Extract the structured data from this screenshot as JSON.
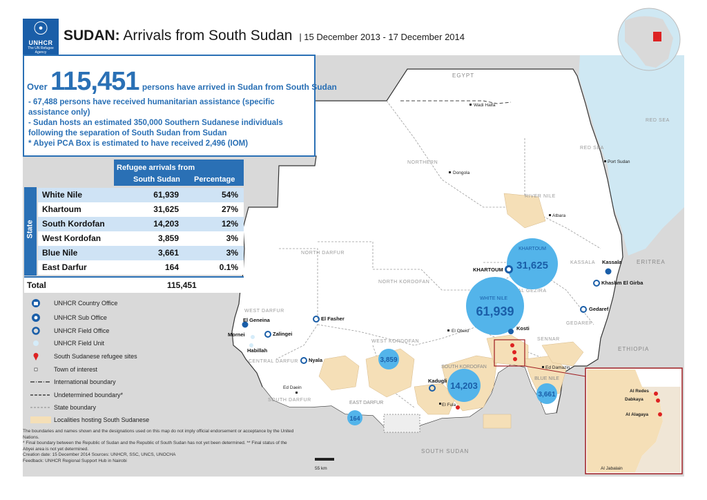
{
  "header": {
    "org_name": "UNHCR",
    "org_tagline": "The UN Refugee Agency",
    "title_bold": "SUDAN:",
    "title_rest": "Arrivals from South Sudan",
    "date_range": "| 15 December 2013 - 17 December 2014"
  },
  "summary": {
    "prefix": "Over",
    "total": "115,451",
    "headline_rest": "persons have arrived in Sudan from South Sudan",
    "bullets": [
      "- 67,488 persons have received humanitarian assistance (specific assistance only)",
      "- Sudan hosts an estimated 350,000 Southern Sudanese individuals following the separation of South Sudan from Sudan",
      "* Abyei PCA Box is estimated to have received 2,496 (IOM)"
    ]
  },
  "table": {
    "header_title": "Refugee arrivals from",
    "col_arrivals": "South Sudan",
    "col_percentage": "Percentage",
    "state_label": "State",
    "rows": [
      {
        "state": "White Nile",
        "arrivals": "61,939",
        "percentage": "54%"
      },
      {
        "state": "Khartoum",
        "arrivals": "31,625",
        "percentage": "27%"
      },
      {
        "state": "South Kordofan",
        "arrivals": "14,203",
        "percentage": "12%"
      },
      {
        "state": "West Kordofan",
        "arrivals": "3,859",
        "percentage": "3%"
      },
      {
        "state": "Blue Nile",
        "arrivals": "3,661",
        "percentage": "3%"
      },
      {
        "state": "East Darfur",
        "arrivals": "164",
        "percentage": "0.1%"
      }
    ],
    "total_label": "Total",
    "total_value": "115,451"
  },
  "legend": [
    {
      "icon": "country-office-icon",
      "label": "UNHCR Country Office"
    },
    {
      "icon": "sub-office-icon",
      "label": "UNHCR Sub Office"
    },
    {
      "icon": "field-office-icon",
      "label": "UNHCR Field Office"
    },
    {
      "icon": "field-unit-icon",
      "label": "UNHCR Field Unit"
    },
    {
      "icon": "refugee-site-icon",
      "label": "South Sudanese refugee sites"
    },
    {
      "icon": "town-icon",
      "label": "Town of interest"
    },
    {
      "icon": "international-boundary-line",
      "label": "International boundary"
    },
    {
      "icon": "undetermined-boundary-line",
      "label": "Undetermined boundary*"
    },
    {
      "icon": "state-boundary-line",
      "label": "State boundary"
    },
    {
      "icon": "localities-swatch",
      "label": "Localities hosting South Sudanese"
    }
  ],
  "footnotes": [
    "The boundaries and names shown and the designations used on this map do not imply official endorsement or acceptance by the United Nations.",
    "* Final boundary between the Republic of Sudan and the Republic of South Sudan has not yet been determined. ** Final status of the Abyei area is not yet determined.",
    "Creation date: 15 December 2014  Sources: UNHCR, SSC, UNCS, UNOCHA",
    "Feedback: UNHCR Regional Support Hub in Nairobi"
  ],
  "map": {
    "countries": [
      "EGYPT",
      "ERITREA",
      "ETHIOPIA",
      "SOUTH SUDAN"
    ],
    "sea": "RED SEA",
    "states": [
      "NORTHERN",
      "RIVER NILE",
      "RED SEA",
      "NORTH DARFUR",
      "NORTH KORDOFAN",
      "KHARTOUM",
      "KASSALA",
      "AL GEZIRA",
      "GEDAREF",
      "WHITE NILE",
      "SENNAR",
      "WEST DARFUR",
      "CENTRAL DARFUR",
      "SOUTH DARFUR",
      "EAST DARFUR",
      "WEST KORDOFAN",
      "SOUTH KORDOFAN",
      "BLUE NILE"
    ],
    "offices": {
      "country_office": "KHARTOUM",
      "sub_offices": [
        "El Geneina",
        "Kassala",
        "Kosti"
      ],
      "field_offices": [
        "El Fasher",
        "Nyala",
        "Zalingei",
        "Kadugli",
        "Gedaref",
        "Khashm El Girba"
      ],
      "field_units": [
        "Mornei",
        "Habillah"
      ]
    },
    "towns": [
      "Wadi Halfa",
      "Dongola",
      "Port Sudan",
      "Atbara",
      "El Obeid",
      "Ed Damazin",
      "Ed Daein",
      "El Fula"
    ],
    "refugee_sites": [
      "Al Redes",
      "Al Alagaya",
      "Dabkaya"
    ],
    "bubbles": [
      {
        "state": "Khartoum",
        "value": "31,625",
        "label": "KHARTOUM"
      },
      {
        "state": "White Nile",
        "value": "61,939",
        "label": "WHITE NILE"
      },
      {
        "state": "South Kordofan",
        "value": "14,203",
        "label": "SOUTH KORDOFAN"
      },
      {
        "state": "West Kordofan",
        "value": "3,859",
        "label": "WEST KORDOFAN"
      },
      {
        "state": "Blue Nile",
        "value": "3,661",
        "label": "BLUE NILE"
      },
      {
        "state": "East Darfur",
        "value": "164",
        "label": "EAST DARFUR"
      }
    ],
    "scale_label": "55 km",
    "inset_labels": [
      "Al Redes",
      "Dabkaya",
      "Al Alagaya",
      "Al Jabalain"
    ],
    "colors": {
      "sudan": "#ffffff",
      "neighbors": "#d9d9d9",
      "sea": "#cfe8f3",
      "localities": "#f5dfb7",
      "bubble": "#53b4ea",
      "unhcr_blue": "#2a70b5",
      "inset_border": "#9e1b1f"
    }
  }
}
